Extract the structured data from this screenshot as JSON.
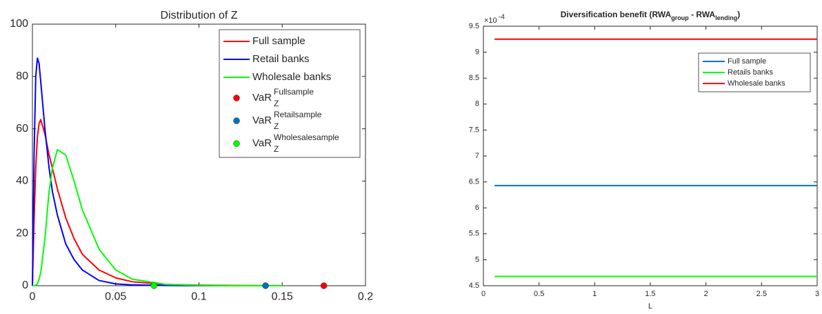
{
  "chart_data": [
    {
      "type": "line",
      "title": "Distribution of Z",
      "x": [
        0,
        0.001,
        0.002,
        0.003,
        0.004,
        0.005,
        0.0075,
        0.01,
        0.012,
        0.015,
        0.02,
        0.025,
        0.03,
        0.04,
        0.05,
        0.06,
        0.08,
        0.1,
        0.12,
        0.15
      ],
      "series": [
        {
          "name": "Full sample",
          "color": "#ff0000",
          "values": [
            0,
            25,
            45,
            57,
            62,
            63.5,
            58,
            50,
            45,
            37,
            26,
            18,
            12,
            6,
            3,
            1.5,
            0.5,
            0.2,
            0.1,
            0
          ]
        },
        {
          "name": "Retail banks",
          "color": "#0000ff",
          "values": [
            0,
            50,
            80,
            87,
            85,
            78,
            60,
            45,
            36,
            27,
            16,
            10,
            6,
            2,
            0.7,
            0.3,
            0.1,
            0,
            0,
            0
          ]
        },
        {
          "name": "Wholesale banks",
          "color": "#00ff00",
          "values": [
            0,
            0,
            0.2,
            0.8,
            2.5,
            5,
            18,
            36,
            45,
            52,
            50,
            40,
            29,
            14,
            6,
            2.5,
            0.5,
            0.1,
            0,
            0
          ]
        }
      ],
      "markers": [
        {
          "name": "VaR",
          "sub": "Z",
          "sup": "Fullsample",
          "color": "#ff0000",
          "x": 0.175,
          "y": 0
        },
        {
          "name": "VaR",
          "sub": "Z",
          "sup": "Retailsample",
          "color": "#0072bd",
          "x": 0.14,
          "y": 0
        },
        {
          "name": "VaR",
          "sub": "Z",
          "sup": "Wholesalesample",
          "color": "#00ff00",
          "x": 0.073,
          "y": 0
        }
      ],
      "xlim": [
        0,
        0.2
      ],
      "xticks": [
        0,
        0.05,
        0.1,
        0.15,
        0.2
      ],
      "ylim": [
        0,
        100
      ],
      "yticks": [
        0,
        20,
        40,
        60,
        80,
        100
      ],
      "legend": "northeast"
    },
    {
      "type": "line",
      "title": [
        {
          "text": "Diversification benefit (RWA",
          "sub": false
        },
        {
          "text": "group",
          "sub": true
        },
        {
          "text": " - RWA",
          "sub": false
        },
        {
          "text": "lending",
          "sub": true
        },
        {
          "text": ")",
          "sub": false
        }
      ],
      "xlabel": "L",
      "x": [
        0.1,
        3
      ],
      "series": [
        {
          "name": "Full sample",
          "color": "#0072bd",
          "values": [
            0.000643,
            0.000643
          ]
        },
        {
          "name": "Retails banks",
          "color": "#00ff00",
          "values": [
            0.000468,
            0.000468
          ]
        },
        {
          "name": "Wholesale banks",
          "color": "#ff0000",
          "values": [
            0.000925,
            0.000925
          ]
        }
      ],
      "xlim": [
        0,
        3
      ],
      "xticks": [
        0,
        0.5,
        1,
        1.5,
        2,
        2.5,
        3
      ],
      "ylim": [
        0.00045,
        0.00095
      ],
      "yticks": [
        {
          "value": 0.00045,
          "label": "4.5"
        },
        {
          "value": 0.0005,
          "label": "5"
        },
        {
          "value": 0.00055,
          "label": "5.5"
        },
        {
          "value": 0.0006,
          "label": "6"
        },
        {
          "value": 0.00065,
          "label": "6.5"
        },
        {
          "value": 0.0007,
          "label": "7"
        },
        {
          "value": 0.00075,
          "label": "7.5"
        },
        {
          "value": 0.0008,
          "label": "8"
        },
        {
          "value": 0.00085,
          "label": "8.5"
        },
        {
          "value": 0.0009,
          "label": "9"
        },
        {
          "value": 0.00095,
          "label": "9.5"
        }
      ],
      "y_exponent": {
        "base": "×10",
        "power": "-4"
      },
      "legend": "northeast"
    }
  ]
}
